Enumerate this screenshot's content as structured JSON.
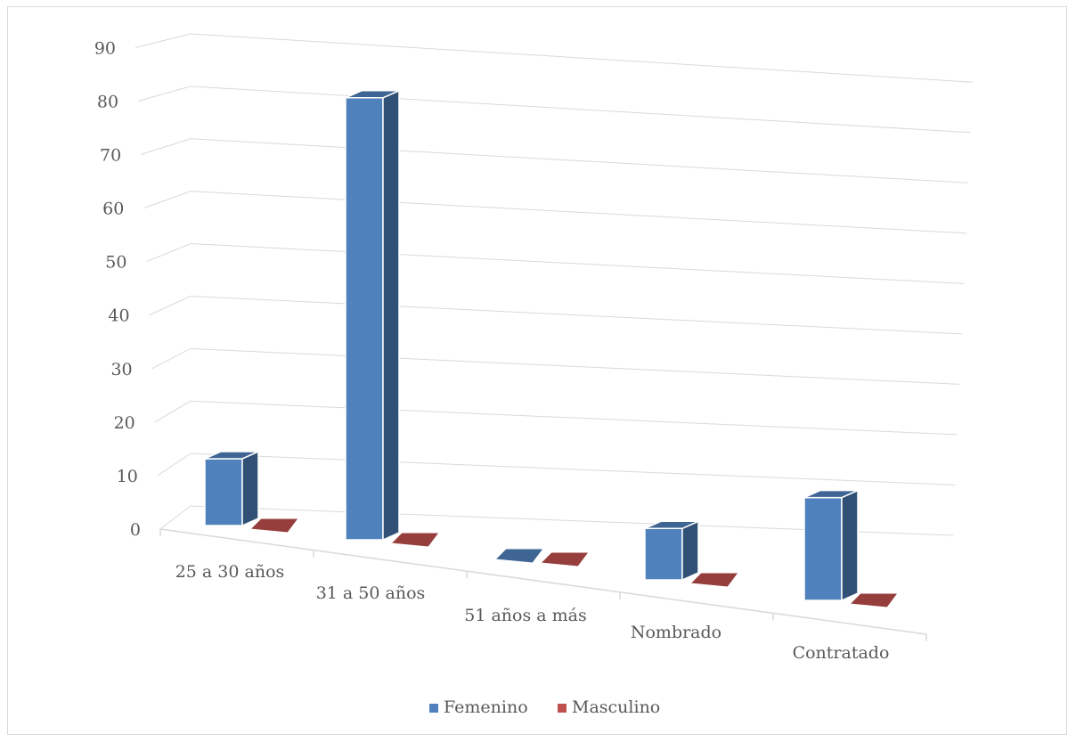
{
  "chart_data": {
    "type": "bar",
    "style": "3d-clustered-column",
    "categories": [
      "25 a 30 años",
      "31 a 50 años",
      "51 años a más",
      "Nombrado",
      "Contratado"
    ],
    "series": [
      {
        "name": "Femenino",
        "values": [
          13,
          86,
          0,
          10,
          20
        ],
        "color": "#4f81bd"
      },
      {
        "name": "Masculino",
        "values": [
          0,
          0,
          0,
          0,
          0
        ],
        "color": "#c0504d"
      }
    ],
    "y_ticks": [
      "0",
      "10",
      "20",
      "30",
      "40",
      "50",
      "60",
      "70",
      "80",
      "90"
    ],
    "ylim": [
      0,
      90
    ],
    "grid": true,
    "legend_position": "bottom"
  }
}
